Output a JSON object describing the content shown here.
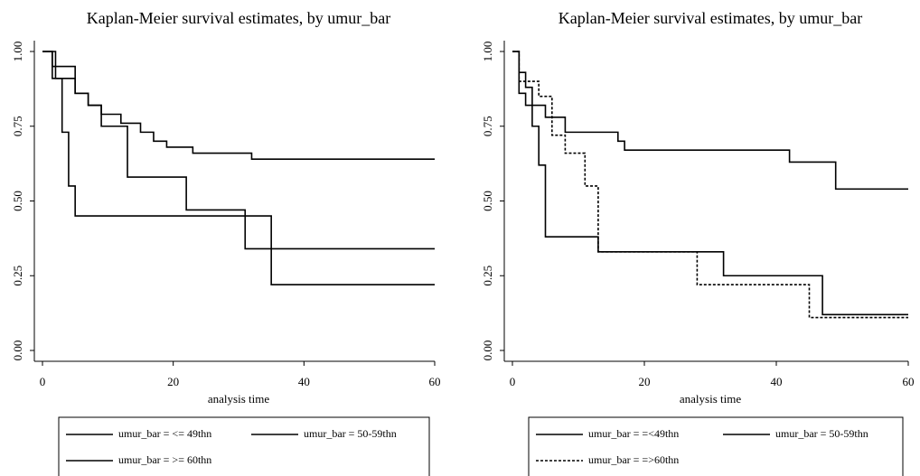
{
  "chart_data": [
    {
      "type": "line",
      "step": true,
      "title": "Kaplan-Meier survival estimates, by umur_bar",
      "x_label": "analysis time",
      "xlim": [
        0,
        60
      ],
      "xticks": [
        0,
        20,
        40,
        60
      ],
      "ylim": [
        0,
        1
      ],
      "yticks": [
        {
          "value": 0,
          "label": "0.00"
        },
        {
          "value": 0.25,
          "label": "0.25"
        },
        {
          "value": 0.5,
          "label": "0.50"
        },
        {
          "value": 0.75,
          "label": "0.75"
        },
        {
          "value": 1,
          "label": "1.00"
        }
      ],
      "series": [
        {
          "name": "umur_bar = <= 49thn",
          "color": "#000000",
          "style": "solid",
          "x": [
            0,
            2,
            5,
            7,
            9,
            12,
            15,
            17,
            19,
            23,
            32,
            60
          ],
          "values": [
            1,
            0.91,
            0.86,
            0.82,
            0.79,
            0.76,
            0.73,
            0.7,
            0.68,
            0.66,
            0.64,
            0.64
          ]
        },
        {
          "name": "umur_bar = 50-59thn",
          "color": "#000000",
          "style": "solid",
          "x": [
            0,
            1.5,
            5,
            7,
            9,
            13,
            22,
            31,
            60
          ],
          "values": [
            1,
            0.95,
            0.86,
            0.82,
            0.75,
            0.58,
            0.47,
            0.34,
            0.34
          ]
        },
        {
          "name": "umur_bar = >= 60thn",
          "color": "#000000",
          "style": "solid",
          "x": [
            0,
            1.5,
            3,
            4,
            5,
            35,
            60
          ],
          "values": [
            1,
            0.91,
            0.73,
            0.55,
            0.45,
            0.22,
            0.22
          ]
        }
      ]
    },
    {
      "type": "line",
      "step": true,
      "title": "Kaplan-Meier survival estimates, by umur_bar",
      "x_label": "analysis time",
      "xlim": [
        0,
        60
      ],
      "xticks": [
        0,
        20,
        40,
        60
      ],
      "ylim": [
        0,
        1
      ],
      "yticks": [
        {
          "value": 0,
          "label": "0.00"
        },
        {
          "value": 0.25,
          "label": "0.25"
        },
        {
          "value": 0.5,
          "label": "0.50"
        },
        {
          "value": 0.75,
          "label": "0.75"
        },
        {
          "value": 1,
          "label": "1.00"
        }
      ],
      "series": [
        {
          "name": "umur_bar = =<49thn",
          "color": "#000000",
          "style": "solid",
          "x": [
            0,
            1,
            2,
            5,
            8,
            16,
            17,
            42,
            49,
            60
          ],
          "values": [
            1,
            0.86,
            0.82,
            0.78,
            0.73,
            0.7,
            0.67,
            0.63,
            0.54,
            0.54
          ]
        },
        {
          "name": "umur_bar = 50-59thn",
          "color": "#000000",
          "style": "solid",
          "x": [
            0,
            1,
            2,
            3,
            4,
            5,
            13,
            32,
            47,
            60
          ],
          "values": [
            1,
            0.93,
            0.88,
            0.75,
            0.62,
            0.38,
            0.33,
            0.25,
            0.12,
            0.12
          ]
        },
        {
          "name": "umur_bar = =>60thn",
          "color": "#000000",
          "style": "dashed",
          "x": [
            0,
            1,
            4,
            6,
            8,
            11,
            13,
            28,
            45,
            60
          ],
          "values": [
            1,
            0.9,
            0.85,
            0.72,
            0.66,
            0.55,
            0.33,
            0.22,
            0.11,
            0.11
          ]
        }
      ]
    }
  ]
}
